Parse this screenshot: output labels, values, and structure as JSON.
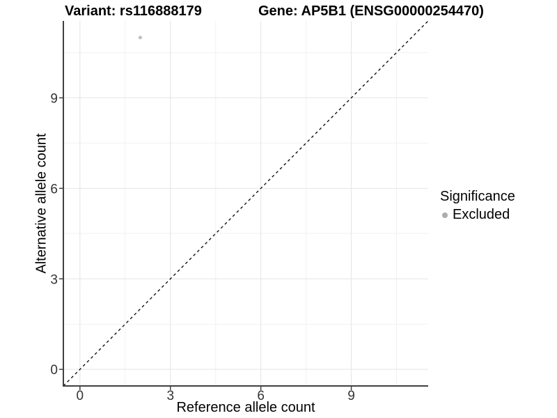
{
  "titles": {
    "left": "Variant: rs116888179",
    "right": "Gene: AP5B1 (ENSG00000254470)"
  },
  "chart_data": {
    "type": "scatter",
    "title_left": "Variant: rs116888179",
    "title_right": "Gene: AP5B1 (ENSG00000254470)",
    "xlabel": "Reference allele count",
    "ylabel": "Alternative allele count",
    "xlim": [
      -0.55,
      11.55
    ],
    "ylim": [
      -0.55,
      11.55
    ],
    "xticks": [
      0,
      3,
      6,
      9
    ],
    "yticks": [
      0,
      3,
      6,
      9
    ],
    "xticks_minor": [
      1.5,
      4.5,
      7.5,
      10.5
    ],
    "yticks_minor": [
      1.5,
      4.5,
      7.5,
      10.5
    ],
    "grid": true,
    "points": [
      {
        "x": 2,
        "y": 11,
        "significance": "Excluded"
      }
    ],
    "reference_line": {
      "equation": "y = x",
      "style": "dashed",
      "color": "#000000"
    },
    "legend": {
      "position": "right",
      "title": "Significance",
      "entries": [
        {
          "label": "Excluded",
          "color": "#bdbdbd",
          "marker": "circle"
        }
      ]
    }
  },
  "colors": {
    "background": "#ffffff",
    "axis_line": "#404040",
    "tick_label": "#333333",
    "grid_major": "#e4e4e4",
    "grid_minor": "#f1f1f1",
    "point": "#c0c0c0",
    "legend_dot": "#adadad",
    "reference_line": "#000000"
  }
}
